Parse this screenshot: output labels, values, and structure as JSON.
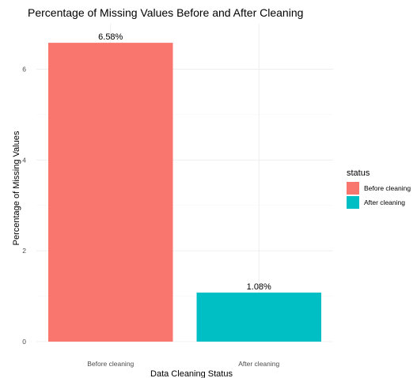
{
  "chart_data": {
    "type": "bar",
    "title": "Percentage of Missing Values Before and After Cleaning",
    "xlabel": "Data Cleaning Status",
    "ylabel": "Percentage of Missing Values",
    "categories": [
      "Before cleaning",
      "After cleaning"
    ],
    "values": [
      6.58,
      1.08
    ],
    "data_labels": [
      "6.58%",
      "1.08%"
    ],
    "colors": [
      "#F8766D",
      "#00BFC4"
    ],
    "ylim": [
      0,
      7
    ],
    "yticks": [
      0,
      2,
      4,
      6
    ],
    "yticks_labels": [
      "0",
      "2",
      "4",
      "6"
    ],
    "grid": true,
    "legend": {
      "title": "status",
      "position": "right",
      "entries": [
        "Before cleaning",
        "After cleaning"
      ]
    }
  }
}
